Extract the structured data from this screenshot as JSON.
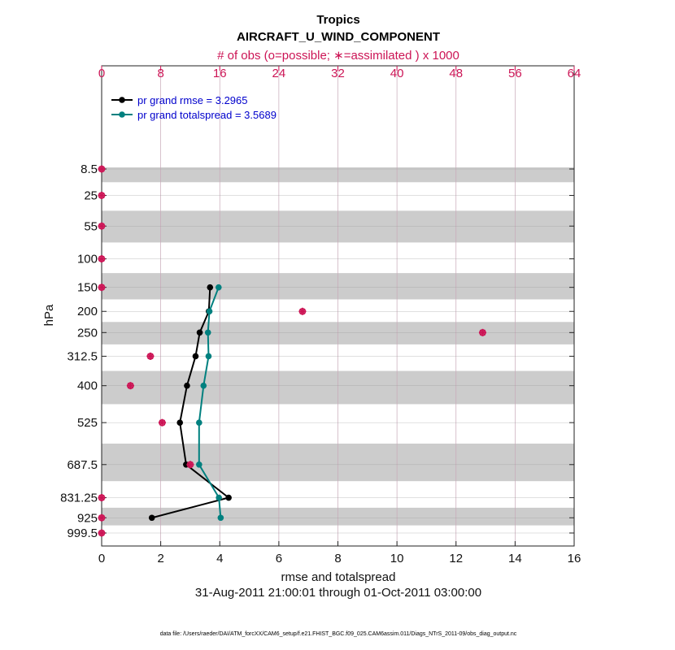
{
  "title": "Tropics",
  "subtitle": "AIRCRAFT_U_WIND_COMPONENT",
  "top_axis_label": "# of obs (o=possible; ∗=assimilated ) x 1000",
  "date_range": "31-Aug-2011 21:00:01 through 01-Oct-2011 03:00:00",
  "footer": "data file: /Users/raeder/DAI/ATM_forcXX/CAM6_setup/f.e21.FHIST_BGC.f09_025.CAM6assim.011/Diags_NTrS_2011-09/obs_diag_output.nc",
  "colors": {
    "rmse": "#000000",
    "spread": "#00807f",
    "obs": "#cc1455",
    "band": "#cccccc",
    "grid": "#c8a8b8"
  },
  "chart_data": {
    "type": "line",
    "xlabel": "rmse and totalspread",
    "ylabel": "hPa",
    "xlim": [
      0,
      16
    ],
    "x_ticks": [
      0,
      2,
      4,
      6,
      8,
      10,
      12,
      14,
      16
    ],
    "top_xlim": [
      0,
      64
    ],
    "top_x_ticks": [
      0,
      8,
      16,
      24,
      32,
      40,
      48,
      56,
      64
    ],
    "y_ticks": [
      "8.5",
      "25",
      "55",
      "100",
      "150",
      "200",
      "250",
      "312.5",
      "400",
      "525",
      "687.5",
      "831.25",
      "925",
      "999.5"
    ],
    "y_tick_values": [
      8.5,
      25,
      55,
      100,
      150,
      200,
      250,
      312.5,
      400,
      525,
      687.5,
      831.25,
      925,
      999.5
    ],
    "shaded_levels": [
      8.5,
      55,
      150,
      250,
      400,
      687.5,
      925
    ],
    "grid": true,
    "legend_position": "top-left",
    "series": [
      {
        "name": "pr grand rmse = 3.2965",
        "levels": [
          150,
          200,
          250,
          312.5,
          400,
          525,
          687.5,
          831.25,
          925
        ],
        "values": [
          3.67,
          3.63,
          3.32,
          3.18,
          2.89,
          2.65,
          2.86,
          4.3,
          1.7
        ]
      },
      {
        "name": "pr grand totalspread = 3.5689",
        "levels": [
          150,
          200,
          250,
          312.5,
          400,
          525,
          687.5,
          831.25,
          925
        ],
        "values": [
          3.96,
          3.65,
          3.6,
          3.62,
          3.45,
          3.3,
          3.3,
          3.97,
          4.03
        ]
      }
    ],
    "obs_counts_thousands": {
      "levels": [
        8.5,
        25,
        55,
        100,
        150,
        200,
        250,
        312.5,
        400,
        525,
        687.5,
        831.25,
        925,
        999.5
      ],
      "possible": [
        0,
        0,
        0,
        0,
        0,
        27.2,
        51.6,
        6.6,
        3.9,
        8.2,
        12.0,
        0,
        0,
        0
      ],
      "assimilated": [
        0,
        0,
        0,
        0,
        0,
        27.2,
        51.6,
        6.6,
        3.9,
        8.2,
        12.0,
        0,
        0,
        0
      ]
    }
  }
}
